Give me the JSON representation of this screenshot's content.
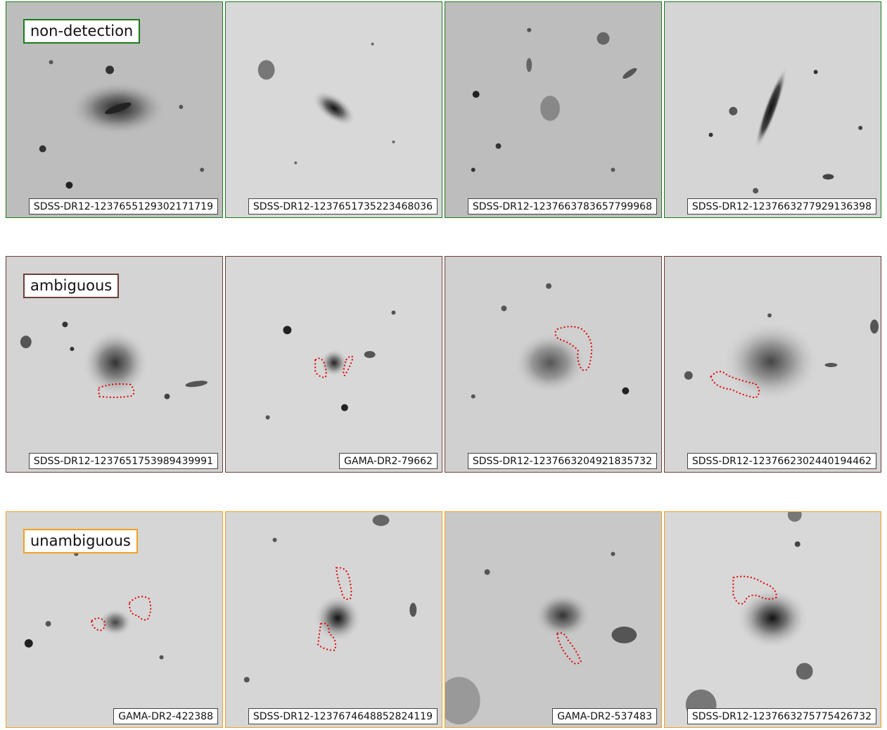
{
  "rows": [
    {
      "category": "non-detection",
      "color": "#1a7a1a",
      "panels": [
        {
          "id": "SDSS-DR12-1237655129302171719"
        },
        {
          "id": "SDSS-DR12-1237651735223468036"
        },
        {
          "id": "SDSS-DR12-1237663783657799968"
        },
        {
          "id": "SDSS-DR12-1237663277929136398"
        }
      ]
    },
    {
      "category": "ambiguous",
      "color": "#6b3f38",
      "panels": [
        {
          "id": "SDSS-DR12-1237651753989439991"
        },
        {
          "id": "GAMA-DR2-79662"
        },
        {
          "id": "SDSS-DR12-1237663204921835732"
        },
        {
          "id": "SDSS-DR12-1237662302440194462"
        }
      ]
    },
    {
      "category": "unambiguous",
      "color": "#f0a020",
      "panels": [
        {
          "id": "GAMA-DR2-422388"
        },
        {
          "id": "SDSS-DR12-1237674648852824119"
        },
        {
          "id": "GAMA-DR2-537483"
        },
        {
          "id": "SDSS-DR12-1237663275775426732"
        }
      ]
    }
  ],
  "contour_color": "#e00000"
}
